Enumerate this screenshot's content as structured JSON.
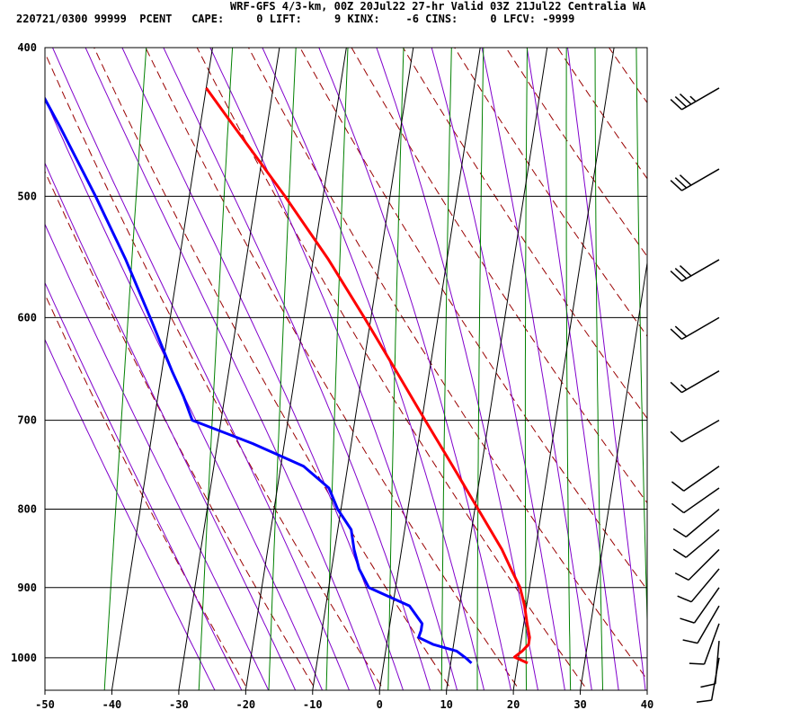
{
  "header": {
    "title": "WRF-GFS 4/3-km, 00Z 20Jul22 27-hr Valid 03Z 21Jul22 Centralia WA",
    "info": "220721/0300 99999  PCENT   CAPE:     0 LIFT:     9 KINX:    -6 CINS:     0 LFCV: -9999"
  },
  "colors": {
    "temperature": "#ff0000",
    "dewpoint": "#0000ff",
    "dry_adiabat": "#990000",
    "moist_adiabat": "#8000cc",
    "mixing_ratio": "#008000",
    "grid": "#000000"
  },
  "chart_data": {
    "type": "line",
    "subtype": "skew-T log-P sounding",
    "xlim": [
      -50,
      40
    ],
    "ylim_hPa": [
      1050,
      400
    ],
    "x_ticks": [
      "-50",
      "-40",
      "-30",
      "-20",
      "-10",
      "0",
      "10",
      "20",
      "30",
      "40"
    ],
    "y_ticks": [
      "400",
      "500",
      "600",
      "700",
      "800",
      "900",
      "1000"
    ],
    "isotherms": [
      -40,
      -30,
      -20,
      -10,
      0,
      10,
      20,
      30
    ],
    "isobars": [
      500,
      600,
      700,
      800,
      900,
      1000
    ],
    "series": [
      {
        "role": "temperature",
        "pressure_hPa": [
          1008,
          999,
          990,
          980,
          970,
          950,
          925,
          900,
          875,
          850,
          800,
          750,
          700,
          650,
          600,
          550,
          500,
          450,
          425
        ],
        "temp_C": [
          21.5,
          19.4,
          20.4,
          21.2,
          21.2,
          20.5,
          19.7,
          18.6,
          16.8,
          15.0,
          10.5,
          5.7,
          0.5,
          -5.0,
          -11.0,
          -17.7,
          -25.7,
          -35.0,
          -40.0
        ]
      },
      {
        "role": "dewpoint",
        "pressure_hPa": [
          1008,
          1000,
          990,
          980,
          970,
          960,
          950,
          925,
          900,
          875,
          850,
          825,
          800,
          775,
          750,
          725,
          700,
          675,
          650,
          600,
          550,
          500,
          450,
          425
        ],
        "dewpoint_C": [
          13.1,
          12.1,
          10.6,
          6.9,
          4.6,
          4.8,
          4.8,
          2.5,
          -4.0,
          -5.9,
          -7.1,
          -8.0,
          -10.5,
          -12.3,
          -16.6,
          -24.7,
          -34.3,
          -36.2,
          -38.5,
          -43.0,
          -48.0,
          -54.0,
          -61.0,
          -65.0
        ]
      }
    ],
    "wind_barbs": [
      {
        "pressure_hPa": 425,
        "direction_deg": 240,
        "speed_kt": 35
      },
      {
        "pressure_hPa": 480,
        "direction_deg": 240,
        "speed_kt": 30
      },
      {
        "pressure_hPa": 550,
        "direction_deg": 240,
        "speed_kt": 30
      },
      {
        "pressure_hPa": 600,
        "direction_deg": 240,
        "speed_kt": 20
      },
      {
        "pressure_hPa": 650,
        "direction_deg": 240,
        "speed_kt": 15
      },
      {
        "pressure_hPa": 700,
        "direction_deg": 240,
        "speed_kt": 10
      },
      {
        "pressure_hPa": 750,
        "direction_deg": 235,
        "speed_kt": 10
      },
      {
        "pressure_hPa": 775,
        "direction_deg": 235,
        "speed_kt": 10
      },
      {
        "pressure_hPa": 800,
        "direction_deg": 230,
        "speed_kt": 10
      },
      {
        "pressure_hPa": 825,
        "direction_deg": 230,
        "speed_kt": 10
      },
      {
        "pressure_hPa": 850,
        "direction_deg": 225,
        "speed_kt": 10
      },
      {
        "pressure_hPa": 875,
        "direction_deg": 220,
        "speed_kt": 10
      },
      {
        "pressure_hPa": 900,
        "direction_deg": 215,
        "speed_kt": 10
      },
      {
        "pressure_hPa": 925,
        "direction_deg": 210,
        "speed_kt": 10
      },
      {
        "pressure_hPa": 950,
        "direction_deg": 200,
        "speed_kt": 10
      },
      {
        "pressure_hPa": 975,
        "direction_deg": 185,
        "speed_kt": 10
      },
      {
        "pressure_hPa": 1000,
        "direction_deg": 190,
        "speed_kt": 10
      }
    ]
  }
}
